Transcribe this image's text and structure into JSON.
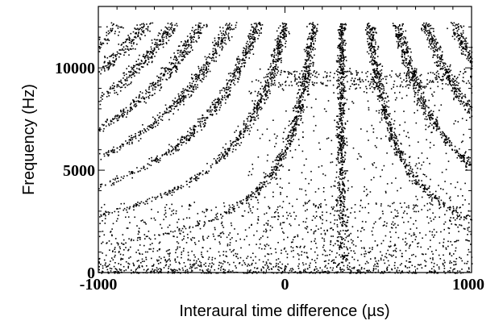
{
  "chart_data": {
    "type": "scatter",
    "title": "",
    "xlabel": "Interaural time difference  (µs)",
    "ylabel": "Frequency  (Hz)",
    "xlim": [
      -1000,
      1000
    ],
    "ylim": [
      0,
      13000
    ],
    "x_ticks": [
      -1000,
      0,
      1000
    ],
    "y_ticks": [
      0,
      5000,
      10000
    ],
    "x_tick_labels": [
      "-1000",
      "0",
      "1000"
    ],
    "y_tick_labels": [
      "0",
      "5000",
      "10000"
    ],
    "grid": false,
    "legend": "none",
    "point_color": "#000000",
    "max_frequency_hz": 12200,
    "band_center_itd_us": 300,
    "band_spacing_us": 150,
    "band_indices": [
      -8,
      -7,
      -6,
      -5,
      -4,
      -3,
      -2,
      -1,
      0,
      1,
      2,
      3,
      4,
      5
    ]
  }
}
